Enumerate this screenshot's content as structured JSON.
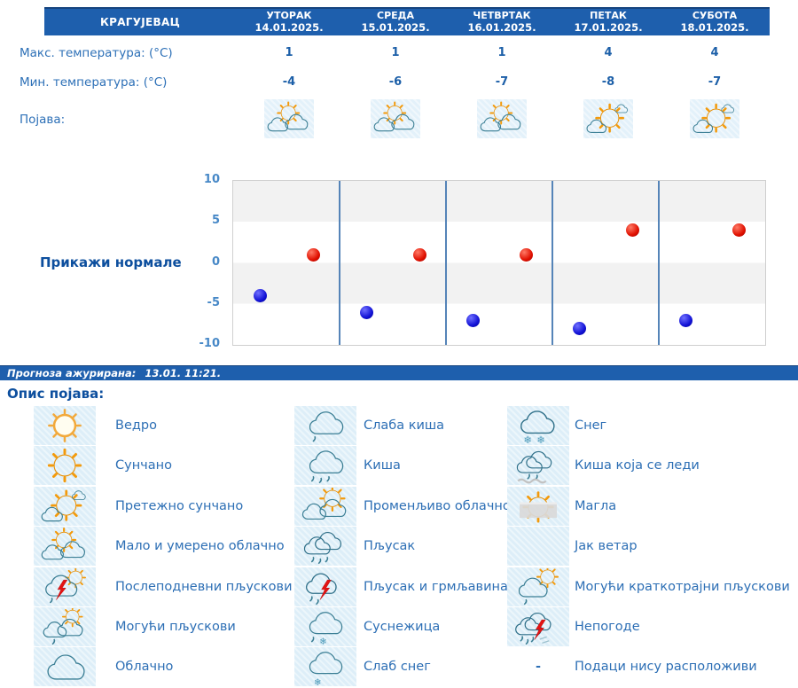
{
  "forecast_table": {
    "city": "КРАГУЈЕВАЦ",
    "days": [
      {
        "name": "УТОРАК",
        "date": "14.01.2025."
      },
      {
        "name": "СРЕДА",
        "date": "15.01.2025."
      },
      {
        "name": "ЧЕТВРТАК",
        "date": "16.01.2025."
      },
      {
        "name": "ПЕТАК",
        "date": "17.01.2025."
      },
      {
        "name": "СУБОТА",
        "date": "18.01.2025."
      }
    ],
    "max_label": "Макс. температура: (°C)",
    "min_label": "Мин. температура: (°C)",
    "phenomena_label": "Појава:",
    "max_values": [
      "1",
      "1",
      "1",
      "4",
      "4"
    ],
    "min_values": [
      "-4",
      "-6",
      "-7",
      "-8",
      "-7"
    ],
    "day_icons": [
      "partly-cloudy",
      "partly-cloudy",
      "partly-cloudy",
      "mostly-sunny",
      "mostly-sunny"
    ]
  },
  "normals_button": {
    "label": "Прикажи нормале"
  },
  "chart_data": {
    "type": "scatter",
    "categories": [
      "УТОРАК 14.01.2025.",
      "СРЕДА 15.01.2025.",
      "ЧЕТВРТАК 16.01.2025.",
      "ПЕТАК 17.01.2025.",
      "СУБОТА 18.01.2025."
    ],
    "series": [
      {
        "name": "Макс. температура (°C)",
        "color": "#dd1100",
        "values": [
          1,
          1,
          1,
          4,
          4
        ]
      },
      {
        "name": "Мин. температура (°C)",
        "color": "#1111cc",
        "values": [
          -4,
          -6,
          -7,
          -8,
          -7
        ]
      }
    ],
    "ylim": [
      -10,
      10
    ],
    "yticks": [
      10,
      5,
      0,
      -5,
      -10
    ],
    "grid": "horizontal-bands-alternating",
    "legend_position": "none",
    "title": ""
  },
  "update_bar": {
    "label": "Прогноза ажурирана:",
    "value": "13.01. 11:21."
  },
  "legend": {
    "title": "Опис појава:",
    "columns": [
      {
        "items": [
          {
            "icon": "clear-sun-outline-icon",
            "label": "Ведро"
          },
          {
            "icon": "sunny-icon",
            "label": "Сунчано"
          },
          {
            "icon": "mostly-sunny-icon",
            "label": "Претежно сунчано"
          },
          {
            "icon": "partly-cloudy-icon",
            "label": "Мало и умерено облачно"
          },
          {
            "icon": "afternoon-showers-icon",
            "label": "Послеподневни пљускови"
          },
          {
            "icon": "possible-showers-icon",
            "label": "Могући пљускови"
          },
          {
            "icon": "cloudy-icon",
            "label": "Облачно"
          }
        ]
      },
      {
        "items": [
          {
            "icon": "light-rain-icon",
            "label": "Слаба киша"
          },
          {
            "icon": "rain-icon",
            "label": "Киша"
          },
          {
            "icon": "variable-clouds-icon",
            "label": "Променљиво облачно"
          },
          {
            "icon": "heavy-shower-icon",
            "label": "Пљусак"
          },
          {
            "icon": "shower-thunder-icon",
            "label": "Пљусак и грмљавина"
          },
          {
            "icon": "sleet-icon",
            "label": "Суснежица"
          },
          {
            "icon": "light-snow-icon",
            "label": "Слаб снег"
          }
        ]
      },
      {
        "items": [
          {
            "icon": "snow-icon",
            "label": "Снег"
          },
          {
            "icon": "freezing-rain-icon",
            "label": "Киша која се леди"
          },
          {
            "icon": "fog-icon",
            "label": "Магла"
          },
          {
            "icon": "strong-wind-icon",
            "label": "Јак ветар"
          },
          {
            "icon": "possible-brief-showers-icon",
            "label": "Могући краткотрајни пљускови"
          },
          {
            "icon": "storms-icon",
            "label": "Непогоде"
          },
          {
            "icon": "no-data",
            "symbol": "-",
            "label": "Подаци нису расположиви"
          }
        ]
      }
    ]
  },
  "colors": {
    "header_bg": "#1e5fad",
    "header_text": "#ffffff",
    "label_text": "#2d70b7",
    "value_text": "#1c5fa8",
    "heading_text": "#0d4f9e",
    "legend_text": "#2d6fb5",
    "icon_cell_bg": "#ddeef8",
    "chart_band": "#f2f2f2",
    "chart_separator": "#5584b8",
    "max_dot": "#dd1100",
    "min_dot": "#1111cc"
  }
}
